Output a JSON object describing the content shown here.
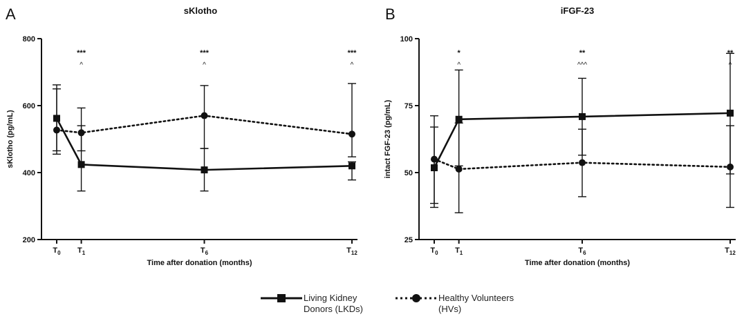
{
  "chart_data": [
    {
      "panel": "A",
      "type": "line",
      "title": "sKlotho",
      "xlabel": "Time after donation (months)",
      "ylabel": "sKlotho (pg/mL)",
      "ylim": [
        200,
        800
      ],
      "yticks": [
        200,
        400,
        600,
        800
      ],
      "x": [
        0,
        1,
        6,
        12
      ],
      "xticks": [
        {
          "base": "T",
          "sub": "0"
        },
        {
          "base": "T",
          "sub": "1"
        },
        {
          "base": "T",
          "sub": "6"
        },
        {
          "base": "T",
          "sub": "12"
        }
      ],
      "series": [
        {
          "key": "lkd",
          "values": [
            562,
            424,
            408,
            420
          ],
          "err_low": [
            455,
            345,
            345,
            378
          ],
          "err_high": [
            662,
            540,
            472,
            432
          ]
        },
        {
          "key": "hv",
          "values": [
            527,
            519,
            570,
            515
          ],
          "err_low": [
            465,
            465,
            472,
            447
          ],
          "err_high": [
            650,
            593,
            660,
            666
          ]
        }
      ],
      "annotations": [
        {
          "x": 1,
          "top": "***",
          "bottom": "^"
        },
        {
          "x": 6,
          "top": "***",
          "bottom": "^"
        },
        {
          "x": 12,
          "top": "***",
          "bottom": "^"
        }
      ]
    },
    {
      "panel": "B",
      "type": "line",
      "title": "iFGF-23",
      "xlabel": "Time after donation (months)",
      "ylabel": "intact FGF-23 (pg/mL)",
      "ylim": [
        25,
        100
      ],
      "yticks": [
        25,
        50,
        75,
        100
      ],
      "x": [
        0,
        1,
        6,
        12
      ],
      "xticks": [
        {
          "base": "T",
          "sub": "0"
        },
        {
          "base": "T",
          "sub": "1"
        },
        {
          "base": "T",
          "sub": "6"
        },
        {
          "base": "T",
          "sub": "12"
        }
      ],
      "series": [
        {
          "key": "lkd",
          "values": [
            51.8,
            69.9,
            70.9,
            72.2
          ],
          "err_low": [
            38.5,
            52.5,
            56.5,
            49.5
          ],
          "err_high": [
            67,
            88.3,
            85.2,
            94.5
          ]
        },
        {
          "key": "hv",
          "values": [
            55,
            51.3,
            53.7,
            52.1
          ],
          "err_low": [
            37,
            35,
            41,
            37
          ],
          "err_high": [
            71.2,
            68.5,
            66.2,
            67.5
          ]
        }
      ],
      "annotations": [
        {
          "x": 1,
          "top": "*",
          "bottom": "^"
        },
        {
          "x": 6,
          "top": "**",
          "bottom": "^^^"
        },
        {
          "x": 12,
          "top": "**",
          "bottom": "^"
        }
      ]
    }
  ],
  "legend": [
    {
      "key": "lkd",
      "label": "Living Kidney Donors (LKDs)",
      "style": "solid",
      "marker": "square"
    },
    {
      "key": "hv",
      "label": "Healthy Volunteers (HVs)",
      "style": "dotted",
      "marker": "circle"
    }
  ],
  "colors": {
    "line": "#111111"
  }
}
